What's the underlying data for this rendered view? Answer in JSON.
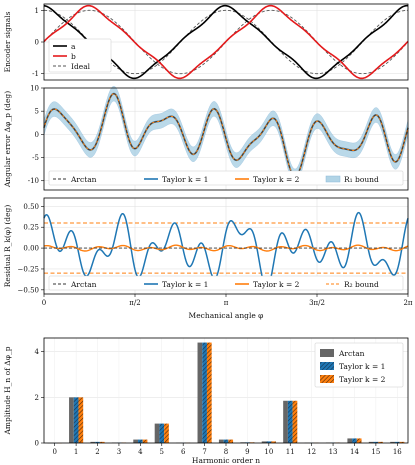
{
  "chart_data": [
    {
      "id": "encoder",
      "type": "line",
      "ylabel": "Encoder signals",
      "xlim": [
        0,
        6.2832
      ],
      "ylim": [
        -1.2,
        1.2
      ],
      "yticks": [
        -1,
        0,
        1
      ],
      "grid": true,
      "legend_position": "lower-left",
      "series": [
        {
          "name": "a",
          "color": "#000000",
          "style": "solid"
        },
        {
          "name": "b",
          "color": "#e41a1c",
          "style": "solid"
        },
        {
          "name": "Ideal",
          "color": "#555555",
          "style": "dashed"
        }
      ],
      "model": {
        "frequency": 2,
        "amplitude": 1,
        "harmonic_3": 0.1,
        "harmonic_5": 0.05
      }
    },
    {
      "id": "angular-error",
      "type": "line",
      "ylabel": "Angular error Δφ_p (deg)",
      "xlim": [
        0,
        6.2832
      ],
      "ylim": [
        -12,
        10
      ],
      "yticks": [
        -10,
        -5,
        0,
        5,
        10
      ],
      "grid": true,
      "legend_position": "bottom",
      "series": [
        {
          "name": "Arctan",
          "color": "#333333",
          "style": "dashed"
        },
        {
          "name": "Taylor k = 1",
          "color": "#1f77b4",
          "style": "solid"
        },
        {
          "name": "Taylor k = 2",
          "color": "#ff7f0e",
          "style": "solid"
        },
        {
          "name": "R₁ bound",
          "color": "#9ecae1",
          "style": "band",
          "halfwidth": 1.6
        }
      ],
      "harmonics": [
        {
          "order": 1,
          "amplitude": 2.0,
          "phase": 0.3
        },
        {
          "order": 5,
          "amplitude": 0.9,
          "phase": 1.2
        },
        {
          "order": 7,
          "amplitude": 4.4,
          "phase": -0.4
        },
        {
          "order": 11,
          "amplitude": 1.85,
          "phase": 0.9
        },
        {
          "order": 14,
          "amplitude": 0.2,
          "phase": 2.0
        },
        {
          "order": 4,
          "amplitude": 0.15,
          "phase": 0.5
        }
      ]
    },
    {
      "id": "residual",
      "type": "line",
      "ylabel": "Residual R_k(φ) (deg)",
      "xlabel": "Mechanical angle φ",
      "xlim": [
        0,
        6.2832
      ],
      "ylim": [
        -0.55,
        0.6
      ],
      "yticks": [
        -0.5,
        -0.25,
        0.0,
        0.25,
        0.5
      ],
      "ytick_labels": [
        "−0.50",
        "−0.25",
        "0.00",
        "0.25",
        "0.50"
      ],
      "xticks": [
        0,
        1.5708,
        3.1416,
        4.7124,
        6.2832
      ],
      "xtick_labels": [
        "0",
        "π/2",
        "π",
        "3π/2",
        "2π"
      ],
      "grid": true,
      "legend_position": "bottom",
      "series": [
        {
          "name": "Arctan",
          "color": "#333333",
          "style": "dashed",
          "value": 0
        },
        {
          "name": "Taylor k = 1",
          "color": "#1f77b4",
          "style": "solid"
        },
        {
          "name": "Taylor k = 2",
          "color": "#ff7f0e",
          "style": "solid"
        },
        {
          "name": "R₂ bound",
          "color": "#ff7f0e",
          "style": "dashed",
          "bound": 0.3
        }
      ],
      "taylor1_harmonics": [
        {
          "order": 6,
          "amplitude": 0.2,
          "phase": 0.4
        },
        {
          "order": 14,
          "amplitude": 0.18,
          "phase": 1.1
        },
        {
          "order": 9,
          "amplitude": 0.1,
          "phase": 2.2
        },
        {
          "order": 4,
          "amplitude": 0.06,
          "phase": 0.7
        }
      ],
      "taylor2_harmonics": [
        {
          "order": 6,
          "amplitude": 0.015,
          "phase": 0.4
        },
        {
          "order": 14,
          "amplitude": 0.02,
          "phase": 1.1
        }
      ]
    },
    {
      "id": "harmonics",
      "type": "bar",
      "ylabel": "Amplitude H_n of Δφ_p",
      "xlabel": "Harmonic order n",
      "categories": [
        "0",
        "1",
        "2",
        "3",
        "4",
        "5",
        "6",
        "7",
        "8",
        "9",
        "10",
        "11",
        "12",
        "13",
        "14",
        "15",
        "16"
      ],
      "ylim": [
        0,
        4.6
      ],
      "yticks": [
        0,
        2,
        4
      ],
      "grid": true,
      "legend_position": "top-right",
      "series": [
        {
          "name": "Arctan",
          "color": "#666666",
          "pattern": "solid",
          "values": [
            0,
            2.0,
            0.05,
            0.02,
            0.15,
            0.85,
            0.01,
            4.4,
            0.15,
            0.03,
            0.07,
            1.85,
            0.01,
            0.02,
            0.2,
            0.05,
            0.05
          ]
        },
        {
          "name": "Taylor k = 1",
          "color": "#1f77b4",
          "pattern": "hatch",
          "values": [
            0,
            2.0,
            0.05,
            0.02,
            0.15,
            0.85,
            0.01,
            4.4,
            0.15,
            0.03,
            0.07,
            1.85,
            0.01,
            0.02,
            0.2,
            0.05,
            0.05
          ]
        },
        {
          "name": "Taylor k = 2",
          "color": "#ff7f0e",
          "pattern": "hatch",
          "values": [
            0,
            2.0,
            0.05,
            0.02,
            0.15,
            0.85,
            0.01,
            4.4,
            0.15,
            0.03,
            0.07,
            1.85,
            0.01,
            0.02,
            0.2,
            0.05,
            0.05
          ]
        }
      ]
    }
  ]
}
